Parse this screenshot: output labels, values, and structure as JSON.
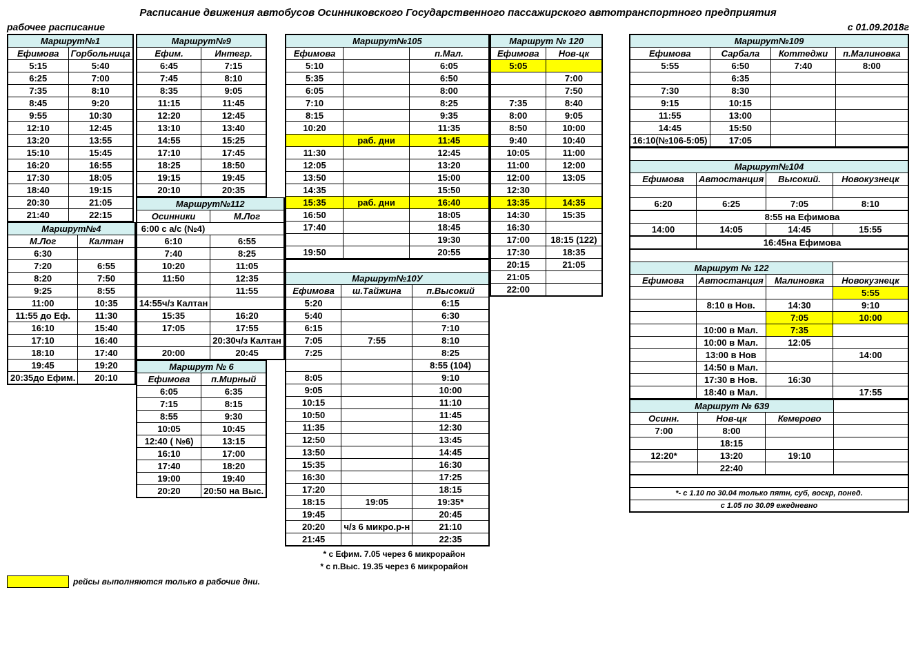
{
  "title": "Расписание движения автобусов Осинниковского Государственного пассажирского автотранспортного предприятия",
  "subtitle_left": "рабочее расписание",
  "subtitle_right": "с 01.09.2018г",
  "legend_text": "рейсы выполняются только в рабочие дни.",
  "fn1": "* с Ефим. 7.05 через 6 микрорайон",
  "fn2": "* с п.Выс. 19.35 через 6 микрорайон",
  "fn639a": "*- с 1.10 по 30.04 только пятн, суб, воскр, понед.",
  "fn639b": "с 1.05 по 30.09 ежедневно",
  "r1": {
    "h": "Маршрут№1",
    "c": [
      "Ефимова",
      "Горбольница"
    ],
    "rows": [
      [
        "5:15",
        "5:40"
      ],
      [
        "6:25",
        "7:00"
      ],
      [
        "7:35",
        "8:10"
      ],
      [
        "8:45",
        "9:20"
      ],
      [
        "9:55",
        "10:30"
      ],
      [
        "12:10",
        "12:45"
      ],
      [
        "13:20",
        "13:55"
      ],
      [
        "15:10",
        "15:45"
      ],
      [
        "16:20",
        "16:55"
      ],
      [
        "17:30",
        "18:05"
      ],
      [
        "18:40",
        "19:15"
      ],
      [
        "20:30",
        "21:05"
      ],
      [
        "21:40",
        "22:15"
      ]
    ]
  },
  "r4": {
    "h": "Маршрут№4",
    "c": [
      "М.Лог",
      "Калтан"
    ],
    "rows": [
      [
        "6:30",
        ""
      ],
      [
        "7:20",
        "6:55"
      ],
      [
        "8:20",
        "7:50"
      ],
      [
        "9:25",
        "8:55"
      ],
      [
        "11:00",
        "10:35"
      ],
      [
        "11:55 до Еф.",
        "11:30"
      ],
      [
        "16:10",
        "15:40"
      ],
      [
        "17:10",
        "16:40"
      ],
      [
        "18:10",
        "17:40"
      ],
      [
        "19:45",
        "19:20"
      ],
      [
        "20:35до Ефим.",
        "20:10"
      ]
    ]
  },
  "r9": {
    "h": "Маршрут№9",
    "c": [
      "Ефим.",
      "Интегр."
    ],
    "rows": [
      [
        "6:45",
        "7:15"
      ],
      [
        "7:45",
        "8:10"
      ],
      [
        "8:35",
        "9:05"
      ],
      [
        "11:15",
        "11:45"
      ],
      [
        "12:20",
        "12:45"
      ],
      [
        "13:10",
        "13:40"
      ],
      [
        "14:55",
        "15:25"
      ],
      [
        "17:10",
        "17:45"
      ],
      [
        "18:25",
        "18:50"
      ],
      [
        "19:15",
        "19:45"
      ],
      [
        "20:10",
        "20:35"
      ]
    ]
  },
  "r112": {
    "h": "Маршрут№112",
    "c": [
      "Осинники",
      "М.Лог"
    ],
    "merged": "6:00 с а/с (№4)",
    "rows": [
      [
        "6:10",
        "6:55"
      ],
      [
        "7:40",
        "8:25"
      ],
      [
        "10:20",
        "11:05"
      ],
      [
        "11:50",
        "12:35"
      ],
      [
        "",
        "11:55"
      ],
      [
        "14:55ч/з Калтан",
        ""
      ],
      [
        "15:35",
        "16:20"
      ],
      [
        "17:05",
        "17:55"
      ],
      [
        "",
        "20:30ч/з Калтан"
      ],
      [
        "20:00",
        "20:45"
      ]
    ]
  },
  "r6": {
    "h": "Маршрут № 6",
    "c": [
      "Ефимова",
      "п.Мирный"
    ],
    "rows": [
      [
        "6:05",
        "6:35"
      ],
      [
        "7:15",
        "8:15"
      ],
      [
        "8:55",
        "9:30"
      ],
      [
        "10:05",
        "10:45"
      ],
      [
        "12:40 ( №6)",
        "13:15"
      ],
      [
        "16:10",
        "17:00"
      ],
      [
        "17:40",
        "18:20"
      ],
      [
        "19:00",
        "19:40"
      ],
      [
        "20:20",
        "20:50 на Выс."
      ]
    ]
  },
  "r105": {
    "h": "Маршрут№105",
    "c": [
      "Ефимова",
      "",
      "п.Мал."
    ],
    "rows": [
      [
        "5:10",
        "",
        "6:05",
        false
      ],
      [
        "5:35",
        "",
        "6:50",
        false
      ],
      [
        "6:05",
        "",
        "8:00",
        false
      ],
      [
        "7:10",
        "",
        "8:25",
        false
      ],
      [
        "8:15",
        "",
        "9:35",
        false
      ],
      [
        "10:20",
        "",
        "11:35",
        false
      ],
      [
        "",
        "раб. дни",
        "11:45",
        true
      ],
      [
        "11:30",
        "",
        "12:45",
        false
      ],
      [
        "12:05",
        "",
        "13:20",
        false
      ],
      [
        "13:50",
        "",
        "15:00",
        false
      ],
      [
        "14:35",
        "",
        "15:50",
        false
      ],
      [
        "15:35",
        "раб. дни",
        "16:40",
        true
      ],
      [
        "16:50",
        "",
        "18:05",
        false
      ],
      [
        "17:40",
        "",
        "18:45",
        false
      ],
      [
        "",
        "",
        "19:30",
        false
      ],
      [
        "19:50",
        "",
        "20:55",
        false
      ]
    ]
  },
  "r10u": {
    "h": "Маршрут№10У",
    "c": [
      "Ефимова",
      "ш.Тайжина",
      "п.Высокий"
    ],
    "rows": [
      [
        "5:20",
        "",
        "6:15"
      ],
      [
        "5:40",
        "",
        "6:30"
      ],
      [
        "6:15",
        "",
        "7:10"
      ],
      [
        "7:05",
        "7:55",
        "8:10"
      ],
      [
        "7:25",
        "",
        "8:25"
      ],
      [
        "",
        "",
        "8:55 (104)"
      ],
      [
        "8:05",
        "",
        "9:10"
      ],
      [
        "9:05",
        "",
        "10:00"
      ],
      [
        "10:15",
        "",
        "11:10"
      ],
      [
        "10:50",
        "",
        "11:45"
      ],
      [
        "11:35",
        "",
        "12:30"
      ],
      [
        "12:50",
        "",
        "13:45"
      ],
      [
        "13:50",
        "",
        "14:45"
      ],
      [
        "15:35",
        "",
        "16:30"
      ],
      [
        "16:30",
        "",
        "17:25"
      ],
      [
        "17:20",
        "",
        "18:15"
      ],
      [
        "18:15",
        "19:05",
        "19:35*"
      ],
      [
        "19:45",
        "",
        "20:45"
      ],
      [
        "20:20",
        "ч/з 6 микро.р-н",
        "21:10"
      ],
      [
        "21:45",
        "",
        "22:35"
      ]
    ]
  },
  "r120": {
    "h": "Маршрут № 120",
    "c": [
      "Ефимова",
      "Нов-цк"
    ],
    "rows": [
      [
        "5:05",
        "",
        true
      ],
      [
        "",
        "7:00",
        false
      ],
      [
        "",
        "7:50",
        false
      ],
      [
        "7:35",
        "8:40",
        false
      ],
      [
        "8:00",
        "9:05",
        false
      ],
      [
        "8:50",
        "10:00",
        false
      ],
      [
        "9:40",
        "10:40",
        false
      ],
      [
        "10:05",
        "11:00",
        false
      ],
      [
        "11:00",
        "12:00",
        false
      ],
      [
        "12:00",
        "13:05",
        false
      ],
      [
        "12:30",
        "",
        false
      ],
      [
        "13:35",
        "14:35",
        true
      ],
      [
        "14:30",
        "15:35",
        false
      ],
      [
        "16:30",
        "",
        false
      ],
      [
        "17:00",
        "18:15 (122)",
        false
      ],
      [
        "17:30",
        "18:35",
        false
      ],
      [
        "20:15",
        "21:05",
        false
      ],
      [
        "21:05",
        "",
        false
      ],
      [
        "22:00",
        "",
        false
      ]
    ]
  },
  "r109": {
    "h": "Маршрут№109",
    "c": [
      "Ефимова",
      "Сарбала",
      "Коттеджи",
      "п.Малиновка"
    ],
    "rows": [
      [
        "5:55",
        "6:50",
        "7:40",
        "8:00"
      ],
      [
        "",
        "6:35",
        "",
        ""
      ],
      [
        "7:30",
        "8:30",
        "",
        ""
      ],
      [
        "9:15",
        "10:15",
        "",
        ""
      ],
      [
        "11:55",
        "13:00",
        "",
        ""
      ],
      [
        "14:45",
        "15:50",
        "",
        ""
      ],
      [
        "16:10(№106-5:05)",
        "17:05",
        "",
        ""
      ]
    ]
  },
  "r104": {
    "h": "Маршрут№104",
    "c": [
      "Ефимова",
      "Автостанция",
      "Высокий.",
      "Новокузнецк"
    ],
    "rows": [
      [
        "",
        "",
        "",
        ""
      ],
      [
        "6:20",
        "6:25",
        "7:05",
        "8:10"
      ]
    ],
    "merged1": "8:55 на Ефимова",
    "rows2": [
      [
        "14:00",
        "14:05",
        "14:45",
        "15:55"
      ]
    ],
    "merged2": "16:45на Ефимова"
  },
  "r122": {
    "h": "Маршрут № 122",
    "c": [
      "Ефимова",
      "Автостанция",
      "Малиновка",
      "Новокузнецк"
    ],
    "rows": [
      [
        "",
        "",
        "",
        "5:55",
        [
          false,
          false,
          false,
          true
        ]
      ],
      [
        "",
        "8:10 в Нов.",
        "14:30",
        "9:10",
        [
          false,
          false,
          false,
          false
        ]
      ],
      [
        "",
        "",
        "7:05",
        "10:00",
        [
          false,
          false,
          true,
          true
        ]
      ],
      [
        "",
        "10:00 в Мал.",
        "7:35",
        "",
        [
          false,
          false,
          true,
          false
        ]
      ],
      [
        "",
        "10:00 в Мал.",
        "12:05",
        "",
        [
          false,
          false,
          false,
          false
        ]
      ],
      [
        "",
        "13:00 в Нов",
        "",
        "14:00",
        [
          false,
          false,
          false,
          false
        ]
      ],
      [
        "",
        "14:50 в Мал.",
        "",
        "",
        [
          false,
          false,
          false,
          false
        ]
      ],
      [
        "",
        "17:30 в Нов.",
        "16:30",
        "",
        [
          false,
          false,
          false,
          false
        ]
      ],
      [
        "",
        "18:40 в Мал.",
        "",
        "17:55",
        [
          false,
          false,
          false,
          false
        ]
      ]
    ]
  },
  "r639": {
    "h": "Маршрут № 639",
    "c": [
      "Осинн.",
      "Нов-цк",
      "Кемерово"
    ],
    "rows": [
      [
        "7:00",
        "8:00",
        "",
        ""
      ],
      [
        "",
        "18:15",
        "",
        ""
      ],
      [
        "12:20*",
        "13:20",
        "19:10",
        ""
      ],
      [
        "",
        "22:40",
        "",
        ""
      ]
    ]
  }
}
